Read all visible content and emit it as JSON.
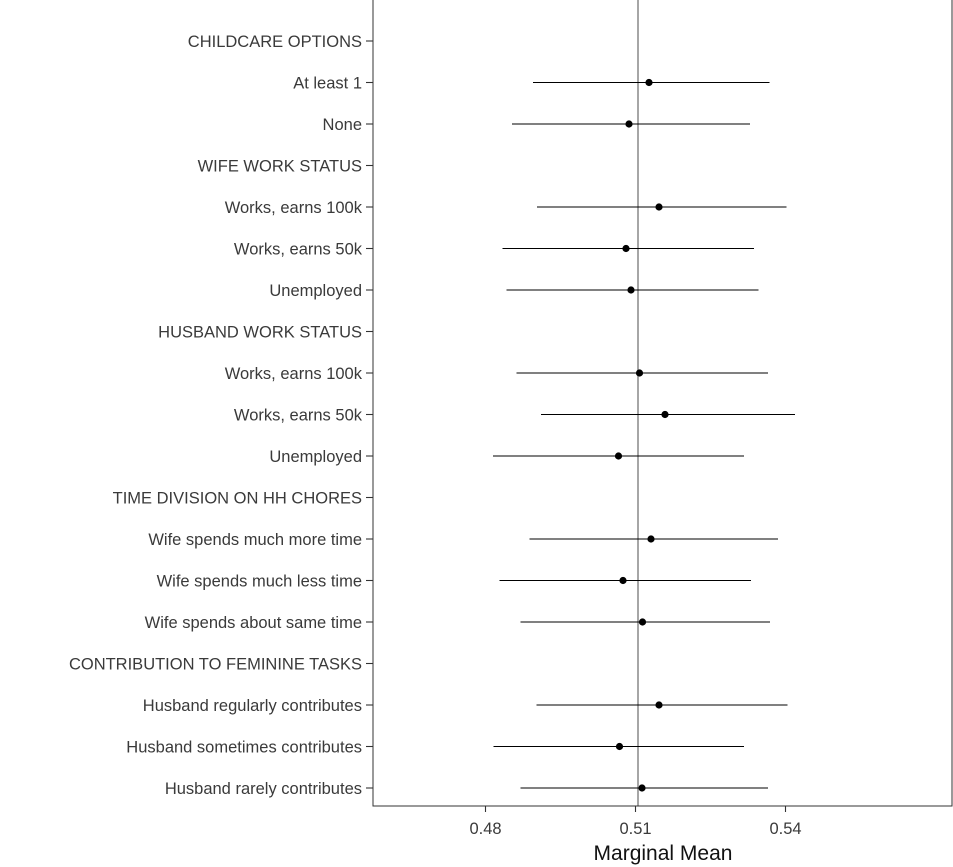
{
  "chart_data": {
    "type": "scatter",
    "title": "",
    "xlabel": "Marginal Mean",
    "ylabel": "",
    "xlim": [
      0.4575,
      0.5735
    ],
    "x_ticks": [
      0.48,
      0.51,
      0.54
    ],
    "x_tick_labels": [
      "0.48",
      "0.51",
      "0.54"
    ],
    "reference_line": 0.5105,
    "grid": false,
    "legend": "none",
    "colors": {
      "point": "#000000",
      "interval": "#000000",
      "reference": "#a6a6a6",
      "axis": "#333333"
    },
    "rows": [
      {
        "label": "CHILDCARE OPTIONS",
        "header": true
      },
      {
        "label": "At least 1",
        "estimate": 0.5127,
        "lower": 0.4895,
        "upper": 0.5368
      },
      {
        "label": "None",
        "estimate": 0.5087,
        "lower": 0.4853,
        "upper": 0.5329
      },
      {
        "label": "WIFE WORK STATUS",
        "header": true
      },
      {
        "label": "Works, earns 100k",
        "estimate": 0.5147,
        "lower": 0.4903,
        "upper": 0.5402
      },
      {
        "label": "Works, earns 50k",
        "estimate": 0.5081,
        "lower": 0.4834,
        "upper": 0.5337
      },
      {
        "label": "Unemployed",
        "estimate": 0.5091,
        "lower": 0.4842,
        "upper": 0.5346
      },
      {
        "label": "HUSBAND WORK STATUS",
        "header": true
      },
      {
        "label": "Works, earns 100k",
        "estimate": 0.5108,
        "lower": 0.4862,
        "upper": 0.5365
      },
      {
        "label": "Works, earns 50k",
        "estimate": 0.5159,
        "lower": 0.4911,
        "upper": 0.5419
      },
      {
        "label": "Unemployed",
        "estimate": 0.5066,
        "lower": 0.4815,
        "upper": 0.5317
      },
      {
        "label": "TIME DIVISION ON HH CHORES",
        "header": true
      },
      {
        "label": "Wife spends much more time",
        "estimate": 0.5131,
        "lower": 0.4888,
        "upper": 0.5385
      },
      {
        "label": "Wife spends much less time",
        "estimate": 0.5075,
        "lower": 0.4828,
        "upper": 0.5331
      },
      {
        "label": "Wife spends about same time",
        "estimate": 0.5114,
        "lower": 0.487,
        "upper": 0.5369
      },
      {
        "label": "CONTRIBUTION TO FEMININE TASKS",
        "header": true
      },
      {
        "label": "Husband regularly contributes",
        "estimate": 0.5147,
        "lower": 0.4902,
        "upper": 0.5404
      },
      {
        "label": "Husband sometimes contributes",
        "estimate": 0.5068,
        "lower": 0.4816,
        "upper": 0.5317
      },
      {
        "label": "Husband rarely contributes",
        "estimate": 0.5113,
        "lower": 0.487,
        "upper": 0.5365
      }
    ]
  }
}
